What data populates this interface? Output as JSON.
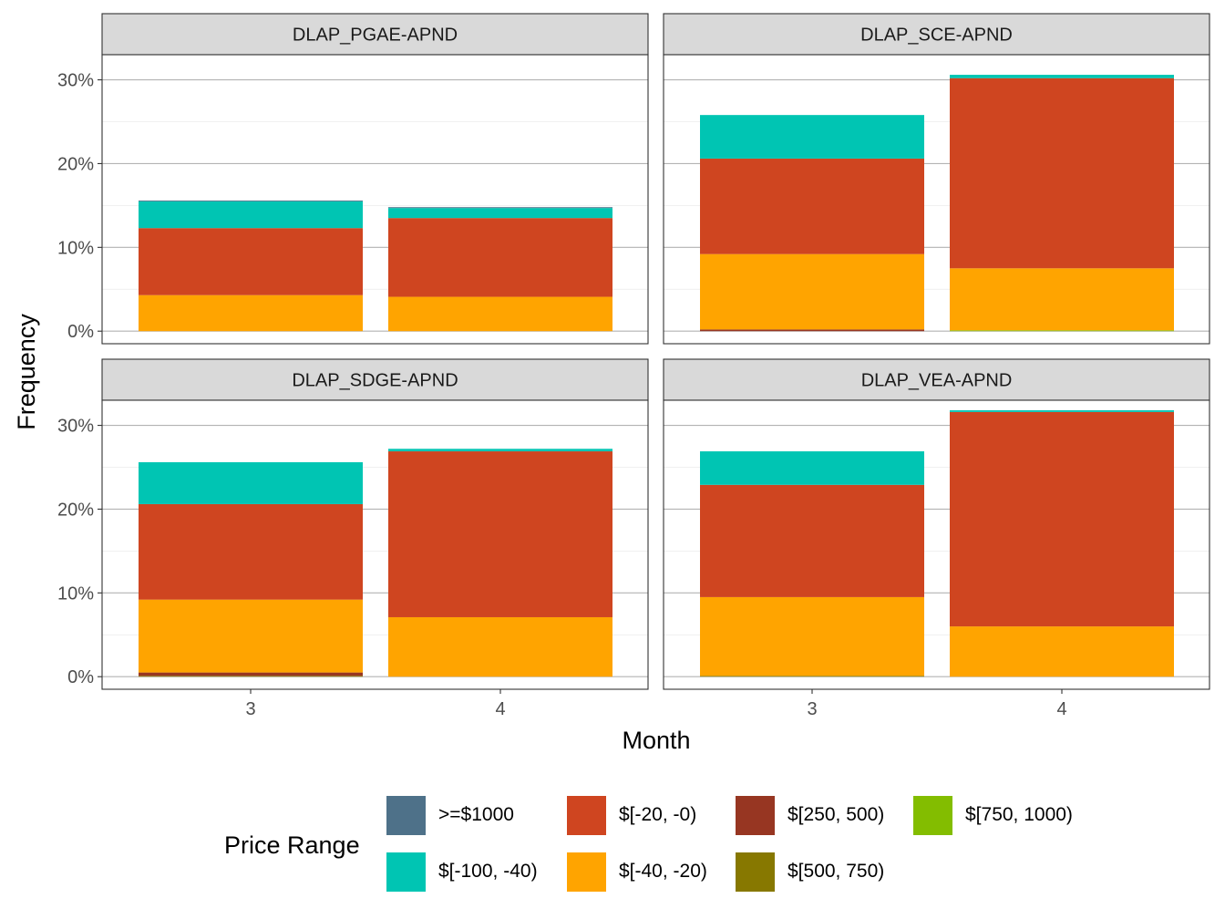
{
  "chart_data": {
    "type": "bar",
    "stacked": true,
    "xlabel": "Month",
    "ylabel": "Frequency",
    "categories": [
      "3",
      "4"
    ],
    "y_ticks": [
      "0%",
      "10%",
      "20%",
      "30%"
    ],
    "ylim": [
      0,
      0.33
    ],
    "legend": {
      "title": "Price Range",
      "placement": "bottom",
      "entries": [
        {
          "label": ">=$1000",
          "color": "#4e7189"
        },
        {
          "label": "$[-100, -40)",
          "color": "#00c5b3"
        },
        {
          "label": "$[-20, -0)",
          "color": "#cf4520"
        },
        {
          "label": "$[-40, -20)",
          "color": "#ffa400"
        },
        {
          "label": "$[250, 500)",
          "color": "#973622"
        },
        {
          "label": "$[500, 750)",
          "color": "#877800"
        },
        {
          "label": "$[750, 1000)",
          "color": "#83bd00"
        }
      ]
    },
    "panels": [
      {
        "title": "DLAP_PGAE-APND",
        "bars": [
          {
            "month": "3",
            "segments": [
              {
                "range": "$[-40, -20)",
                "value": 0.043
              },
              {
                "range": "$[-20, -0)",
                "value": 0.08
              },
              {
                "range": "$[-100, -40)",
                "value": 0.032
              },
              {
                "range": ">=$1000",
                "value": 0.001
              }
            ]
          },
          {
            "month": "4",
            "segments": [
              {
                "range": "$[-40, -20)",
                "value": 0.041
              },
              {
                "range": "$[-20, -0)",
                "value": 0.094
              },
              {
                "range": "$[-100, -40)",
                "value": 0.012
              },
              {
                "range": ">=$1000",
                "value": 0.001
              }
            ]
          }
        ]
      },
      {
        "title": "DLAP_SCE-APND",
        "bars": [
          {
            "month": "3",
            "segments": [
              {
                "range": "$[250, 500)",
                "value": 0.002
              },
              {
                "range": "$[-40, -20)",
                "value": 0.09
              },
              {
                "range": "$[-20, -0)",
                "value": 0.114
              },
              {
                "range": "$[-100, -40)",
                "value": 0.052
              }
            ]
          },
          {
            "month": "4",
            "segments": [
              {
                "range": "$[750, 1000)",
                "value": 0.001
              },
              {
                "range": "$[-40, -20)",
                "value": 0.074
              },
              {
                "range": "$[-20, -0)",
                "value": 0.227
              },
              {
                "range": "$[-100, -40)",
                "value": 0.004
              }
            ]
          }
        ]
      },
      {
        "title": "DLAP_SDGE-APND",
        "bars": [
          {
            "month": "3",
            "segments": [
              {
                "range": "$[500, 750)",
                "value": 0.001
              },
              {
                "range": "$[250, 500)",
                "value": 0.004
              },
              {
                "range": "$[-40, -20)",
                "value": 0.087
              },
              {
                "range": "$[-20, -0)",
                "value": 0.114
              },
              {
                "range": "$[-100, -40)",
                "value": 0.05
              }
            ]
          },
          {
            "month": "4",
            "segments": [
              {
                "range": "$[-40, -20)",
                "value": 0.071
              },
              {
                "range": "$[-20, -0)",
                "value": 0.198
              },
              {
                "range": "$[-100, -40)",
                "value": 0.003
              }
            ]
          }
        ]
      },
      {
        "title": "DLAP_VEA-APND",
        "bars": [
          {
            "month": "3",
            "segments": [
              {
                "range": "$[500, 750)",
                "value": 0.001
              },
              {
                "range": "$[-40, -20)",
                "value": 0.094
              },
              {
                "range": "$[-20, -0)",
                "value": 0.134
              },
              {
                "range": "$[-100, -40)",
                "value": 0.04
              }
            ]
          },
          {
            "month": "4",
            "segments": [
              {
                "range": "$[-40, -20)",
                "value": 0.06
              },
              {
                "range": "$[-20, -0)",
                "value": 0.256
              },
              {
                "range": "$[-100, -40)",
                "value": 0.002
              }
            ]
          }
        ]
      }
    ]
  }
}
